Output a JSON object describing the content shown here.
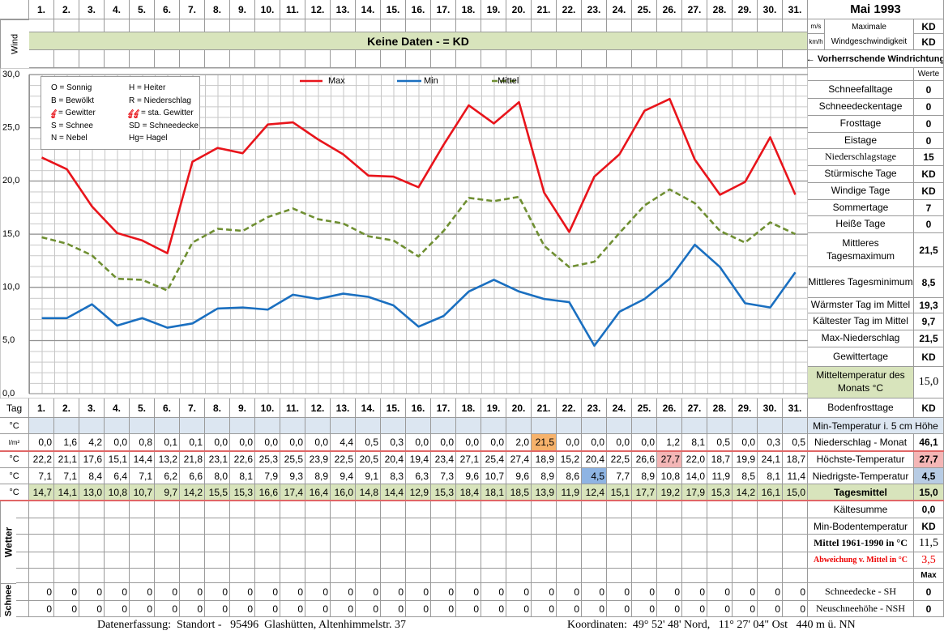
{
  "header": {
    "title": "Mai 1993"
  },
  "wind": {
    "label": "Wind",
    "units": [
      "m/s",
      "km/h"
    ],
    "max_label_1": "Maximale",
    "max_label_2": "Windgeschwindigkeit",
    "values": [
      "KD",
      "KD"
    ],
    "banner": "Keine Daten -  = KD",
    "direction": "← Vorherrschende Windrichtung"
  },
  "chart_data": {
    "type": "line",
    "categories": [
      "1.",
      "2.",
      "3.",
      "4.",
      "5.",
      "6.",
      "7.",
      "8.",
      "9.",
      "10.",
      "11.",
      "12.",
      "13.",
      "14.",
      "15.",
      "16.",
      "17.",
      "18.",
      "19.",
      "20.",
      "21.",
      "22.",
      "23.",
      "24.",
      "25.",
      "26.",
      "27.",
      "28.",
      "29.",
      "30.",
      "31."
    ],
    "ylim": [
      0,
      30
    ],
    "yticks": [
      {
        "value": 0,
        "label": "0,0"
      },
      {
        "value": 5,
        "label": "5,0"
      },
      {
        "value": 10,
        "label": "10,0"
      },
      {
        "value": 15,
        "label": "15,0"
      },
      {
        "value": 20,
        "label": "20,0"
      },
      {
        "value": 25,
        "label": "25,0"
      },
      {
        "value": 30,
        "label": "30,0"
      }
    ],
    "grid": true,
    "series": [
      {
        "name": "Max",
        "color": "#e8141b",
        "line_style": "solid",
        "values": [
          22.2,
          21.1,
          17.6,
          15.1,
          14.4,
          13.2,
          21.8,
          23.1,
          22.6,
          25.3,
          25.5,
          23.9,
          22.5,
          20.5,
          20.4,
          19.4,
          23.4,
          27.1,
          25.4,
          27.4,
          18.9,
          15.2,
          20.4,
          22.5,
          26.6,
          27.7,
          22.0,
          18.7,
          19.9,
          24.1,
          18.7
        ],
        "value_labels": [
          "22,2",
          "21,1",
          "17,6",
          "15,1",
          "14,4",
          "13,2",
          "21,8",
          "23,1",
          "22,6",
          "25,3",
          "25,5",
          "23,9",
          "22,5",
          "20,5",
          "20,4",
          "19,4",
          "23,4",
          "27,1",
          "25,4",
          "27,4",
          "18,9",
          "15,2",
          "20,4",
          "22,5",
          "26,6",
          "27,7",
          "22,0",
          "18,7",
          "19,9",
          "24,1",
          "18,7"
        ]
      },
      {
        "name": "Min",
        "color": "#1a6fc0",
        "line_style": "solid",
        "values": [
          7.1,
          7.1,
          8.4,
          6.4,
          7.1,
          6.2,
          6.6,
          8.0,
          8.1,
          7.9,
          9.3,
          8.9,
          9.4,
          9.1,
          8.3,
          6.3,
          7.3,
          9.6,
          10.7,
          9.6,
          8.9,
          8.6,
          4.5,
          7.7,
          8.9,
          10.8,
          14.0,
          11.9,
          8.5,
          8.1,
          11.4
        ],
        "value_labels": [
          "7,1",
          "7,1",
          "8,4",
          "6,4",
          "7,1",
          "6,2",
          "6,6",
          "8,0",
          "8,1",
          "7,9",
          "9,3",
          "8,9",
          "9,4",
          "9,1",
          "8,3",
          "6,3",
          "7,3",
          "9,6",
          "10,7",
          "9,6",
          "8,9",
          "8,6",
          "4,5",
          "7,7",
          "8,9",
          "10,8",
          "14,0",
          "11,9",
          "8,5",
          "8,1",
          "11,4"
        ]
      },
      {
        "name": "Mittel",
        "color": "#6f8f32",
        "line_style": "dashed",
        "values": [
          14.7,
          14.1,
          13.0,
          10.8,
          10.7,
          9.7,
          14.2,
          15.5,
          15.3,
          16.6,
          17.4,
          16.4,
          16.0,
          14.8,
          14.4,
          12.9,
          15.3,
          18.4,
          18.1,
          18.5,
          13.9,
          11.9,
          12.4,
          15.1,
          17.7,
          19.2,
          17.9,
          15.3,
          14.2,
          16.1,
          15.0
        ],
        "value_labels": [
          "14,7",
          "14,1",
          "13,0",
          "10,8",
          "10,7",
          "9,7",
          "14,2",
          "15,5",
          "15,3",
          "16,6",
          "17,4",
          "16,4",
          "16,0",
          "14,8",
          "14,4",
          "12,9",
          "15,3",
          "18,4",
          "18,1",
          "18,5",
          "13,9",
          "11,9",
          "12,4",
          "15,1",
          "17,7",
          "19,2",
          "17,9",
          "15,3",
          "14,2",
          "16,1",
          "15,0"
        ]
      }
    ]
  },
  "symbols": [
    "O = Sonnig",
    "H = Heiter",
    "B = Bewölkt",
    "R = Niederschlag",
    "= Gewitter",
    "= sta. Gewitter",
    "S = Schnee",
    "SD = Schneedecke",
    "N = Nebel",
    "Hg= Hagel"
  ],
  "stats": {
    "header": "Werte",
    "rows": [
      {
        "label": "Schneefalltage",
        "value": 0
      },
      {
        "label": "Schneedeckentage",
        "value": 0
      },
      {
        "label": "Frosttage",
        "value": 0
      },
      {
        "label": "Eistage",
        "value": 0
      },
      {
        "label": "Niederschlagstage",
        "value": 15
      },
      {
        "label": "Stürmische Tage",
        "value": "KD"
      },
      {
        "label": "Windige Tage",
        "value": "KD"
      },
      {
        "label": "Sommertage",
        "value": 7
      },
      {
        "label": "Heiße Tage",
        "value": 0
      },
      {
        "label": "Mittleres Tagesmaximum",
        "value": "21,5"
      },
      {
        "label": "Mittleres Tagesminimum",
        "value": "8,5"
      },
      {
        "label": "Wärmster Tag im Mittel",
        "value": "19,3"
      },
      {
        "label": "Kältester Tag im Mittel",
        "value": "9,7"
      },
      {
        "label": "Max-Niederschlag",
        "value": "21,5"
      },
      {
        "label": "Gewittertage",
        "value": "KD"
      },
      {
        "label": "Mitteltemperatur des Monats °C",
        "value": "15,0"
      },
      {
        "label": "Bodenfrosttage",
        "value": "KD"
      }
    ],
    "lower_rows": [
      {
        "label": "Min-Temperatur i. 5 cm Höhe"
      },
      {
        "label": "Niederschlag - Monat",
        "value": "46,1"
      },
      {
        "label": "Höchste-Temperatur",
        "value": "27,7"
      },
      {
        "label": "Niedrigste-Temperatur",
        "value": "4,5"
      },
      {
        "label": "Tagesmittel",
        "value": "15,0"
      },
      {
        "label": "Kältesumme",
        "value": "0,0"
      },
      {
        "label": "Min-Bodentemperatur",
        "value": "KD"
      },
      {
        "label": "Mittel 1961-1990 in °C",
        "value": "11,5"
      },
      {
        "label": "Abweichung v. Mittel in °C",
        "value": "3,5"
      },
      {
        "value": "Max"
      },
      {
        "label": "Schneedecke -  SH",
        "value": 0
      },
      {
        "label": "Neuschneehöhe - NSH",
        "value": 0
      }
    ]
  },
  "daily": {
    "day_label": "Tag",
    "min5_unit": "°C",
    "precip_unit": "l/m²",
    "max_unit": "°C",
    "min_unit": "°C",
    "mean_unit": "°C",
    "precip_values": [
      0,
      1.6,
      4.2,
      0,
      0.8,
      0.1,
      0.1,
      0,
      0,
      0,
      0,
      0,
      4.4,
      0.5,
      0.3,
      0,
      0,
      0,
      0,
      2.0,
      21.5,
      0,
      0,
      0,
      0,
      1.2,
      8.1,
      0.5,
      0,
      0.3,
      0.5
    ],
    "precip_labels": [
      "0,0",
      "1,6",
      "4,2",
      "0,0",
      "0,8",
      "0,1",
      "0,1",
      "0,0",
      "0,0",
      "0,0",
      "0,0",
      "0,0",
      "4,4",
      "0,5",
      "0,3",
      "0,0",
      "0,0",
      "0,0",
      "0,0",
      "2,0",
      "21,5",
      "0,0",
      "0,0",
      "0,0",
      "0,0",
      "1,2",
      "8,1",
      "0,5",
      "0,0",
      "0,3",
      "0,5"
    ],
    "weather_label": "Wetter",
    "snow_label": "Schnee",
    "snow_depth": [
      0,
      0,
      0,
      0,
      0,
      0,
      0,
      0,
      0,
      0,
      0,
      0,
      0,
      0,
      0,
      0,
      0,
      0,
      0,
      0,
      0,
      0,
      0,
      0,
      0,
      0,
      0,
      0,
      0,
      0,
      0
    ],
    "new_snow": [
      0,
      0,
      0,
      0,
      0,
      0,
      0,
      0,
      0,
      0,
      0,
      0,
      0,
      0,
      0,
      0,
      0,
      0,
      0,
      0,
      0,
      0,
      0,
      0,
      0,
      0,
      0,
      0,
      0,
      0,
      0
    ]
  },
  "footer": {
    "left": "Datenerfassung:  Standort -   95496  Glashütten, Altenhimmelstr. 37",
    "right": "Koordinaten:  49° 52' 48' Nord,   11° 27' 04\" Ost   440 m ü. NN"
  }
}
